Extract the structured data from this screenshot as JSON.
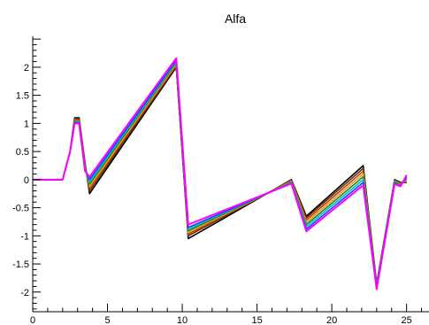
{
  "chart_data": {
    "type": "line",
    "title": "Alfa",
    "xlabel": "",
    "ylabel": "",
    "xlim": [
      0,
      26.5
    ],
    "ylim": [
      -2.35,
      2.55
    ],
    "grid": false,
    "x_ticks": [
      0,
      5,
      10,
      15,
      20,
      25
    ],
    "y_ticks": [
      -2,
      -1.5,
      -1,
      -0.5,
      0,
      0.5,
      1,
      1.5,
      2
    ],
    "x_tick_labels": [
      "0",
      "5",
      "10",
      "15",
      "20",
      "25"
    ],
    "y_tick_labels": [
      "-2",
      "-1.5",
      "-1",
      "-0.5",
      "0",
      "0.5",
      "1",
      "1.5",
      "2"
    ],
    "series_colors": [
      "#000000",
      "#663300",
      "#c0392b",
      "#e6a800",
      "#2e7d32",
      "#00bcd4",
      "#1e40ff",
      "#ff00ff"
    ],
    "series": [
      {
        "color": "#000000",
        "values": [
          [
            0,
            0
          ],
          [
            2,
            0
          ],
          [
            2.5,
            0.5
          ],
          [
            2.8,
            1.1
          ],
          [
            3.1,
            1.1
          ],
          [
            3.5,
            0.3
          ],
          [
            3.8,
            -0.25
          ],
          [
            9.6,
            2.0
          ],
          [
            10.4,
            -1.05
          ],
          [
            17.3,
            0.0
          ],
          [
            18.3,
            -0.65
          ],
          [
            22.1,
            0.25
          ],
          [
            23.0,
            -1.85
          ],
          [
            24.2,
            0.0
          ],
          [
            24.6,
            -0.05
          ],
          [
            25.0,
            -0.05
          ]
        ]
      },
      {
        "color": "#663300",
        "values": [
          [
            0,
            0
          ],
          [
            2,
            0
          ],
          [
            2.5,
            0.5
          ],
          [
            2.8,
            1.09
          ],
          [
            3.1,
            1.08
          ],
          [
            3.5,
            0.28
          ],
          [
            3.8,
            -0.2
          ],
          [
            9.6,
            2.02
          ],
          [
            10.4,
            -1.0
          ],
          [
            17.3,
            -0.01
          ],
          [
            18.3,
            -0.68
          ],
          [
            22.1,
            0.2
          ],
          [
            23.0,
            -1.86
          ],
          [
            24.2,
            -0.01
          ],
          [
            24.6,
            -0.06
          ],
          [
            25.0,
            -0.04
          ]
        ]
      },
      {
        "color": "#c0392b",
        "values": [
          [
            0,
            0
          ],
          [
            2,
            0
          ],
          [
            2.5,
            0.5
          ],
          [
            2.8,
            1.07
          ],
          [
            3.1,
            1.06
          ],
          [
            3.5,
            0.26
          ],
          [
            3.8,
            -0.15
          ],
          [
            9.6,
            2.04
          ],
          [
            10.4,
            -0.97
          ],
          [
            17.3,
            -0.02
          ],
          [
            18.3,
            -0.72
          ],
          [
            22.1,
            0.15
          ],
          [
            23.0,
            -1.87
          ],
          [
            24.2,
            -0.02
          ],
          [
            24.6,
            -0.07
          ],
          [
            25.0,
            -0.03
          ]
        ]
      },
      {
        "color": "#e6a800",
        "values": [
          [
            0,
            0
          ],
          [
            2,
            0
          ],
          [
            2.5,
            0.5
          ],
          [
            2.8,
            1.05
          ],
          [
            3.1,
            1.04
          ],
          [
            3.5,
            0.24
          ],
          [
            3.8,
            -0.12
          ],
          [
            9.6,
            2.06
          ],
          [
            10.4,
            -0.94
          ],
          [
            17.3,
            -0.03
          ],
          [
            18.3,
            -0.76
          ],
          [
            22.1,
            0.1
          ],
          [
            23.0,
            -1.88
          ],
          [
            24.2,
            -0.03
          ],
          [
            24.6,
            -0.08
          ],
          [
            25.0,
            -0.01
          ]
        ]
      },
      {
        "color": "#2e7d32",
        "values": [
          [
            0,
            0
          ],
          [
            2,
            0
          ],
          [
            2.5,
            0.5
          ],
          [
            2.8,
            1.04
          ],
          [
            3.1,
            1.03
          ],
          [
            3.5,
            0.22
          ],
          [
            3.8,
            -0.08
          ],
          [
            9.6,
            2.08
          ],
          [
            10.4,
            -0.91
          ],
          [
            17.3,
            -0.04
          ],
          [
            18.3,
            -0.8
          ],
          [
            22.1,
            0.05
          ],
          [
            23.0,
            -1.89
          ],
          [
            24.2,
            -0.04
          ],
          [
            24.6,
            -0.09
          ],
          [
            25.0,
            0.01
          ]
        ]
      },
      {
        "color": "#00bcd4",
        "values": [
          [
            0,
            0
          ],
          [
            2,
            0
          ],
          [
            2.5,
            0.5
          ],
          [
            2.8,
            1.03
          ],
          [
            3.1,
            1.02
          ],
          [
            3.5,
            0.2
          ],
          [
            3.8,
            -0.04
          ],
          [
            9.6,
            2.1
          ],
          [
            10.4,
            -0.88
          ],
          [
            17.3,
            -0.05
          ],
          [
            18.3,
            -0.84
          ],
          [
            22.1,
            0.0
          ],
          [
            23.0,
            -1.9
          ],
          [
            24.2,
            -0.05
          ],
          [
            24.6,
            -0.1
          ],
          [
            25.0,
            0.03
          ]
        ]
      },
      {
        "color": "#1e40ff",
        "values": [
          [
            0,
            0
          ],
          [
            2,
            0
          ],
          [
            2.5,
            0.5
          ],
          [
            2.8,
            1.02
          ],
          [
            3.1,
            1.01
          ],
          [
            3.5,
            0.18
          ],
          [
            3.8,
            0.0
          ],
          [
            9.6,
            2.12
          ],
          [
            10.4,
            -0.85
          ],
          [
            17.3,
            -0.06
          ],
          [
            18.3,
            -0.88
          ],
          [
            22.1,
            -0.05
          ],
          [
            23.0,
            -1.91
          ],
          [
            24.2,
            -0.06
          ],
          [
            24.6,
            -0.11
          ],
          [
            25.0,
            0.05
          ]
        ]
      },
      {
        "color": "#ff00ff",
        "values": [
          [
            0,
            0
          ],
          [
            2,
            0
          ],
          [
            2.5,
            0.5
          ],
          [
            2.8,
            1.0
          ],
          [
            3.1,
            1.0
          ],
          [
            3.5,
            0.15
          ],
          [
            3.8,
            0.05
          ],
          [
            9.6,
            2.16
          ],
          [
            10.4,
            -0.8
          ],
          [
            17.3,
            -0.07
          ],
          [
            18.3,
            -0.92
          ],
          [
            22.1,
            -0.1
          ],
          [
            23.0,
            -1.95
          ],
          [
            24.2,
            -0.08
          ],
          [
            24.6,
            -0.12
          ],
          [
            25.0,
            0.08
          ]
        ]
      }
    ]
  }
}
